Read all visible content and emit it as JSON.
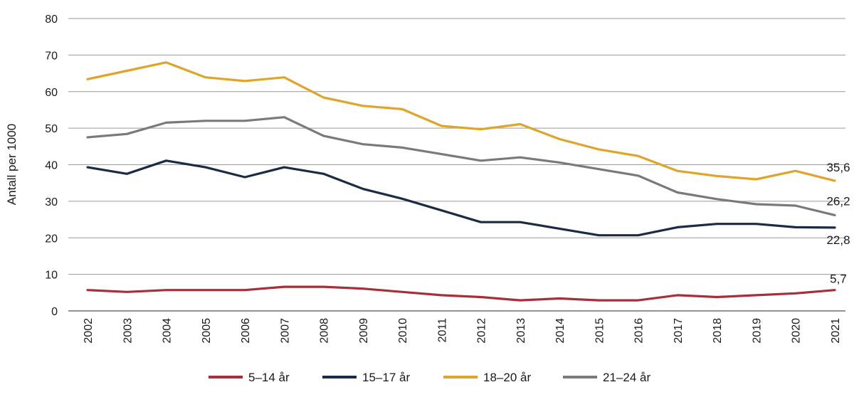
{
  "chart_data": {
    "type": "line",
    "ylabel": "Antall per 1000",
    "ylim": [
      0,
      80
    ],
    "yticks": [
      0,
      10,
      20,
      30,
      40,
      50,
      60,
      70,
      80
    ],
    "grid": "horizontal",
    "legend_position": "bottom",
    "x": [
      "2002",
      "2003",
      "2004",
      "2005",
      "2006",
      "2007",
      "2008",
      "2009",
      "2010",
      "2011",
      "2012",
      "2013",
      "2014",
      "2015",
      "2016",
      "2017",
      "2018",
      "2019",
      "2020",
      "2021"
    ],
    "series": [
      {
        "name": "5–14 år",
        "color": "#a72e3a",
        "values": [
          5.7,
          5.2,
          5.7,
          5.7,
          5.7,
          6.6,
          6.6,
          6.1,
          5.2,
          4.3,
          3.8,
          2.9,
          3.4,
          2.9,
          2.9,
          4.3,
          3.8,
          4.3,
          4.8,
          5.7
        ],
        "end_label": "5,7"
      },
      {
        "name": "15–17 år",
        "color": "#1b2b45",
        "values": [
          39.3,
          37.5,
          41.1,
          39.3,
          36.6,
          39.3,
          37.5,
          33.4,
          30.7,
          27.5,
          24.3,
          24.3,
          22.5,
          20.7,
          20.7,
          22.9,
          23.8,
          23.8,
          22.9,
          22.8
        ],
        "end_label": "22,8"
      },
      {
        "name": "18–20 år",
        "color": "#dea52a",
        "values": [
          63.4,
          65.7,
          68.0,
          63.9,
          62.9,
          63.9,
          58.4,
          56.1,
          55.2,
          50.6,
          49.7,
          51.1,
          47.0,
          44.2,
          42.4,
          38.3,
          36.9,
          36.0,
          38.3,
          35.6
        ],
        "end_label": "35,6"
      },
      {
        "name": "21–24 år",
        "color": "#7a7a7a",
        "values": [
          47.5,
          48.4,
          51.5,
          52.0,
          52.0,
          53.0,
          47.9,
          45.6,
          44.7,
          42.9,
          41.1,
          42.0,
          40.6,
          38.8,
          37.0,
          32.4,
          30.6,
          29.2,
          28.8,
          26.2
        ],
        "end_label": "26,2"
      }
    ]
  }
}
